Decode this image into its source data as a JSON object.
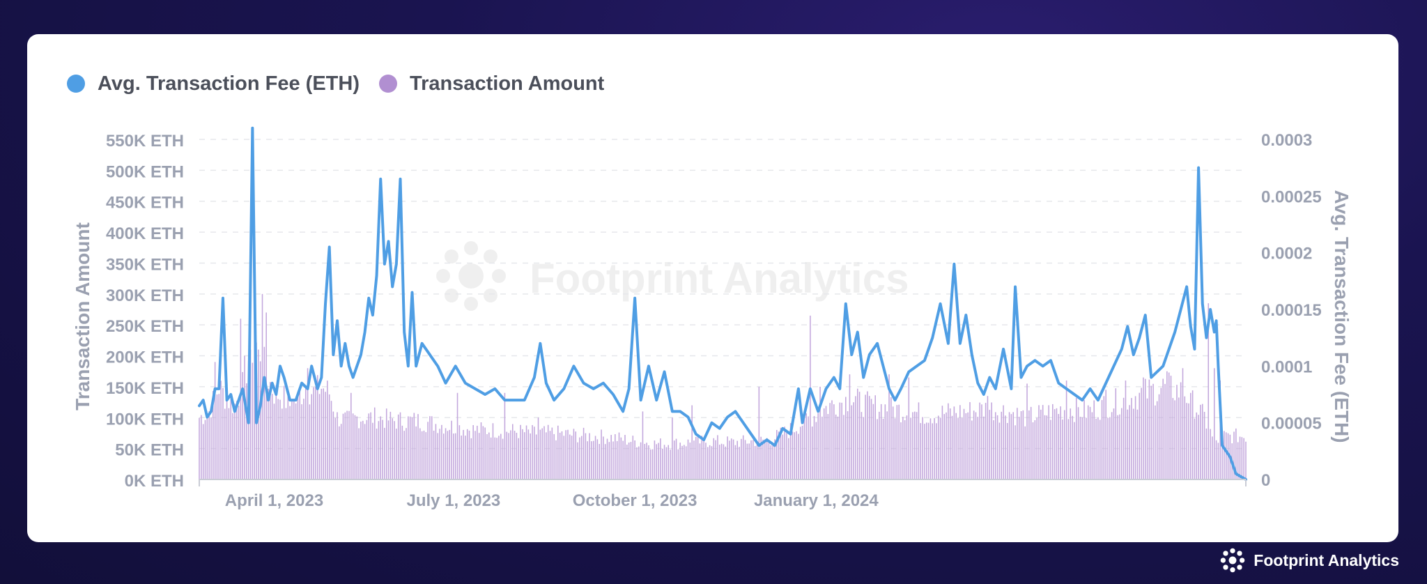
{
  "chart_data": {
    "type": "bar+line",
    "title": "",
    "legend": [
      {
        "name": "Avg. Transaction Fee (ETH)",
        "color": "#4f9ee4"
      },
      {
        "name": "Transaction Amount",
        "color": "#b18fd1"
      }
    ],
    "x_ticks": [
      "April 1, 2023",
      "July 1, 2023",
      "October 1, 2023",
      "January 1, 2024"
    ],
    "x_range": [
      "2023-02-22",
      "2024-04-28"
    ],
    "left_axis": {
      "label": "Transaction Amount",
      "ylim": [
        0,
        550000
      ],
      "ticks": [
        "0K ETH",
        "50K ETH",
        "100K ETH",
        "150K ETH",
        "200K ETH",
        "250K ETH",
        "300K ETH",
        "350K ETH",
        "400K ETH",
        "450K ETH",
        "500K ETH",
        "550K ETH"
      ]
    },
    "right_axis": {
      "label": "Avg. Transaction Fee (ETH)",
      "ylim": [
        0,
        0.0003
      ],
      "ticks": [
        "0",
        "0.00005",
        "0.0001",
        "0.00015",
        "0.0002",
        "0.00025",
        "0.0003"
      ]
    },
    "series": [
      {
        "name": "Transaction Amount",
        "type": "bar",
        "axis": "left",
        "anchors": [
          [
            0,
            100000
          ],
          [
            5,
            110000
          ],
          [
            10,
            150000
          ],
          [
            14,
            130000
          ],
          [
            18,
            120000
          ],
          [
            22,
            150000
          ],
          [
            26,
            210000
          ],
          [
            30,
            220000
          ],
          [
            34,
            170000
          ],
          [
            38,
            140000
          ],
          [
            42,
            135000
          ],
          [
            46,
            120000
          ],
          [
            50,
            130000
          ],
          [
            54,
            150000
          ],
          [
            58,
            140000
          ],
          [
            62,
            150000
          ],
          [
            66,
            140000
          ],
          [
            70,
            100000
          ],
          [
            75,
            95000
          ],
          [
            80,
            100000
          ],
          [
            90,
            100000
          ],
          [
            100,
            95000
          ],
          [
            110,
            95000
          ],
          [
            120,
            90000
          ],
          [
            130,
            85000
          ],
          [
            140,
            80000
          ],
          [
            150,
            80000
          ],
          [
            160,
            78000
          ],
          [
            170,
            75000
          ],
          [
            180,
            75000
          ],
          [
            190,
            72000
          ],
          [
            200,
            70000
          ],
          [
            210,
            68000
          ],
          [
            220,
            62000
          ],
          [
            230,
            58000
          ],
          [
            240,
            58000
          ],
          [
            250,
            60000
          ],
          [
            260,
            62000
          ],
          [
            270,
            60000
          ],
          [
            280,
            62000
          ],
          [
            290,
            65000
          ],
          [
            300,
            80000
          ],
          [
            310,
            100000
          ],
          [
            320,
            120000
          ],
          [
            330,
            130000
          ],
          [
            340,
            120000
          ],
          [
            350,
            115000
          ],
          [
            360,
            110000
          ],
          [
            370,
            105000
          ],
          [
            380,
            108000
          ],
          [
            390,
            110000
          ],
          [
            400,
            115000
          ],
          [
            410,
            110000
          ],
          [
            420,
            100000
          ],
          [
            430,
            108000
          ],
          [
            440,
            115000
          ],
          [
            450,
            110000
          ],
          [
            460,
            120000
          ],
          [
            470,
            130000
          ],
          [
            480,
            140000
          ],
          [
            490,
            150000
          ],
          [
            500,
            140000
          ],
          [
            505,
            120000
          ],
          [
            510,
            100000
          ],
          [
            515,
            60000
          ],
          [
            520,
            70000
          ]
        ],
        "peaks": [
          [
            8,
            190000
          ],
          [
            14,
            155000
          ],
          [
            21,
            260000
          ],
          [
            23,
            200000
          ],
          [
            26,
            210000
          ],
          [
            28,
            270000
          ],
          [
            30,
            210000
          ],
          [
            32,
            300000
          ],
          [
            34,
            270000
          ],
          [
            47,
            130000
          ],
          [
            55,
            180000
          ],
          [
            77,
            140000
          ],
          [
            131,
            140000
          ],
          [
            155,
            140000
          ],
          [
            172,
            100000
          ],
          [
            225,
            110000
          ],
          [
            240,
            100000
          ],
          [
            250,
            120000
          ],
          [
            284,
            150000
          ],
          [
            310,
            265000
          ],
          [
            315,
            150000
          ],
          [
            330,
            170000
          ],
          [
            350,
            170000
          ],
          [
            360,
            165000
          ],
          [
            400,
            135000
          ],
          [
            420,
            155000
          ],
          [
            440,
            160000
          ],
          [
            460,
            145000
          ],
          [
            470,
            160000
          ],
          [
            479,
            165000
          ],
          [
            491,
            175000
          ],
          [
            499,
            180000
          ],
          [
            503,
            140000
          ],
          [
            512,
            285000
          ],
          [
            515,
            180000
          ],
          [
            518,
            160000
          ]
        ]
      },
      {
        "name": "Avg. Transaction Fee (ETH)",
        "type": "line",
        "axis": "right",
        "anchors": [
          [
            0,
            6.5e-05
          ],
          [
            2,
            7e-05
          ],
          [
            4,
            5.5e-05
          ],
          [
            6,
            6e-05
          ],
          [
            8,
            8e-05
          ],
          [
            10,
            8e-05
          ],
          [
            12,
            0.00016
          ],
          [
            14,
            7e-05
          ],
          [
            16,
            7.5e-05
          ],
          [
            18,
            6e-05
          ],
          [
            20,
            7e-05
          ],
          [
            22,
            8e-05
          ],
          [
            25,
            5e-05
          ],
          [
            27,
            0.00031
          ],
          [
            29,
            5e-05
          ],
          [
            31,
            6.5e-05
          ],
          [
            33,
            9e-05
          ],
          [
            35,
            7e-05
          ],
          [
            37,
            8.5e-05
          ],
          [
            39,
            7.5e-05
          ],
          [
            41,
            0.0001
          ],
          [
            43,
            9e-05
          ],
          [
            46,
            7e-05
          ],
          [
            49,
            7e-05
          ],
          [
            52,
            8.5e-05
          ],
          [
            55,
            8e-05
          ],
          [
            57,
            0.0001
          ],
          [
            60,
            8e-05
          ],
          [
            62,
            9e-05
          ],
          [
            64,
            0.000155
          ],
          [
            66,
            0.000205
          ],
          [
            68,
            0.00011
          ],
          [
            70,
            0.00014
          ],
          [
            72,
            0.0001
          ],
          [
            74,
            0.00012
          ],
          [
            76,
            0.0001
          ],
          [
            78,
            9e-05
          ],
          [
            80,
            0.0001
          ],
          [
            82,
            0.00011
          ],
          [
            84,
            0.00013
          ],
          [
            86,
            0.00016
          ],
          [
            88,
            0.000145
          ],
          [
            90,
            0.00018
          ],
          [
            92,
            0.000265
          ],
          [
            94,
            0.00019
          ],
          [
            96,
            0.00021
          ],
          [
            98,
            0.00017
          ],
          [
            100,
            0.00019
          ],
          [
            102,
            0.000265
          ],
          [
            104,
            0.00013
          ],
          [
            106,
            0.0001
          ],
          [
            108,
            0.000165
          ],
          [
            110,
            0.0001
          ],
          [
            113,
            0.00012
          ],
          [
            117,
            0.00011
          ],
          [
            121,
            0.0001
          ],
          [
            125,
            8.5e-05
          ],
          [
            130,
            0.0001
          ],
          [
            135,
            8.5e-05
          ],
          [
            140,
            8e-05
          ],
          [
            145,
            7.5e-05
          ],
          [
            150,
            8e-05
          ],
          [
            155,
            7e-05
          ],
          [
            160,
            7e-05
          ],
          [
            165,
            7e-05
          ],
          [
            170,
            9e-05
          ],
          [
            173,
            0.00012
          ],
          [
            176,
            8.5e-05
          ],
          [
            180,
            7e-05
          ],
          [
            185,
            8e-05
          ],
          [
            190,
            0.0001
          ],
          [
            195,
            8.5e-05
          ],
          [
            200,
            8e-05
          ],
          [
            205,
            8.5e-05
          ],
          [
            210,
            7.5e-05
          ],
          [
            215,
            6e-05
          ],
          [
            218,
            8e-05
          ],
          [
            221,
            0.00016
          ],
          [
            224,
            7e-05
          ],
          [
            228,
            0.0001
          ],
          [
            232,
            7e-05
          ],
          [
            236,
            9.5e-05
          ],
          [
            240,
            6e-05
          ],
          [
            244,
            6e-05
          ],
          [
            248,
            5.5e-05
          ],
          [
            252,
            4e-05
          ],
          [
            256,
            3.5e-05
          ],
          [
            260,
            5e-05
          ],
          [
            264,
            4.5e-05
          ],
          [
            268,
            5.5e-05
          ],
          [
            272,
            6e-05
          ],
          [
            276,
            5e-05
          ],
          [
            280,
            4e-05
          ],
          [
            284,
            3e-05
          ],
          [
            288,
            3.5e-05
          ],
          [
            292,
            3e-05
          ],
          [
            296,
            4.5e-05
          ],
          [
            300,
            4e-05
          ],
          [
            304,
            8e-05
          ],
          [
            306,
            5e-05
          ],
          [
            310,
            8e-05
          ],
          [
            314,
            6e-05
          ],
          [
            318,
            8e-05
          ],
          [
            322,
            9e-05
          ],
          [
            325,
            8e-05
          ],
          [
            328,
            0.000155
          ],
          [
            331,
            0.00011
          ],
          [
            334,
            0.00013
          ],
          [
            337,
            9e-05
          ],
          [
            340,
            0.00011
          ],
          [
            344,
            0.00012
          ],
          [
            347,
            0.0001
          ],
          [
            350,
            8e-05
          ],
          [
            353,
            7e-05
          ],
          [
            356,
            8e-05
          ],
          [
            360,
            9.5e-05
          ],
          [
            364,
            0.0001
          ],
          [
            368,
            0.000105
          ],
          [
            372,
            0.000125
          ],
          [
            376,
            0.000155
          ],
          [
            380,
            0.00012
          ],
          [
            383,
            0.00019
          ],
          [
            386,
            0.00012
          ],
          [
            389,
            0.000145
          ],
          [
            392,
            0.00011
          ],
          [
            395,
            8.5e-05
          ],
          [
            398,
            7.5e-05
          ],
          [
            401,
            9e-05
          ],
          [
            404,
            8e-05
          ],
          [
            408,
            0.000115
          ],
          [
            412,
            8e-05
          ],
          [
            414,
            0.00017
          ],
          [
            417,
            9e-05
          ],
          [
            420,
            0.0001
          ],
          [
            424,
            0.000105
          ],
          [
            428,
            0.0001
          ],
          [
            432,
            0.000105
          ],
          [
            436,
            8.5e-05
          ],
          [
            440,
            8e-05
          ],
          [
            444,
            7.5e-05
          ],
          [
            448,
            7e-05
          ],
          [
            452,
            8e-05
          ],
          [
            456,
            7e-05
          ],
          [
            460,
            8.5e-05
          ],
          [
            464,
            0.0001
          ],
          [
            468,
            0.000115
          ],
          [
            471,
            0.000135
          ],
          [
            474,
            0.00011
          ],
          [
            477,
            0.000125
          ],
          [
            480,
            0.000145
          ],
          [
            483,
            9e-05
          ],
          [
            486,
            9.5e-05
          ],
          [
            489,
            0.0001
          ],
          [
            492,
            0.000115
          ],
          [
            495,
            0.00013
          ],
          [
            498,
            0.00015
          ],
          [
            501,
            0.00017
          ],
          [
            503,
            0.000135
          ],
          [
            505,
            0.000115
          ],
          [
            507,
            0.000275
          ],
          [
            509,
            0.000155
          ],
          [
            511,
            0.000125
          ],
          [
            513,
            0.00015
          ],
          [
            515,
            0.00013
          ],
          [
            516,
            0.00014
          ],
          [
            517,
            0.0001
          ],
          [
            519,
            3e-05
          ],
          [
            521,
            2.5e-05
          ],
          [
            523,
            2e-05
          ],
          [
            526,
            5e-06
          ],
          [
            529,
            2e-06
          ],
          [
            531,
            0.0
          ]
        ]
      }
    ],
    "watermark": "Footprint Analytics",
    "grid": true
  },
  "footer": {
    "brand": "Footprint Analytics"
  }
}
